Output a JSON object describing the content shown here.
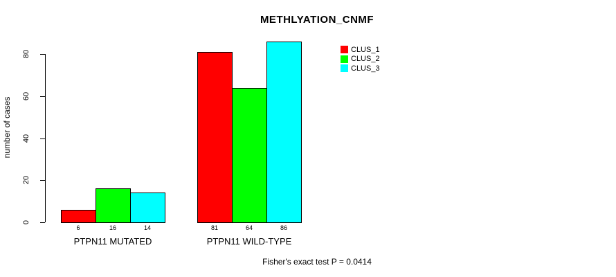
{
  "chart_data": {
    "type": "bar",
    "title": "METHLYATION_CNMF",
    "ylabel": "number of cases",
    "xlabel": "",
    "categories": [
      "PTPN11 MUTATED",
      "PTPN11 WILD-TYPE"
    ],
    "series": [
      {
        "name": "CLUS_1",
        "color": "#ff0000",
        "values": [
          6,
          81
        ]
      },
      {
        "name": "CLUS_2",
        "color": "#00ff00",
        "values": [
          16,
          64
        ]
      },
      {
        "name": "CLUS_3",
        "color": "#00ffff",
        "values": [
          14,
          86
        ]
      }
    ],
    "bar_value_labels": [
      [
        "6",
        "16",
        "14"
      ],
      [
        "81",
        "64",
        "86"
      ]
    ],
    "yticks": [
      0,
      20,
      40,
      60,
      80
    ],
    "ylim": [
      0,
      86
    ],
    "grid": false,
    "legend_position": "top-right",
    "bar_border_color": "#000000",
    "annotation": "Fisher's exact test P = 0.0414"
  }
}
